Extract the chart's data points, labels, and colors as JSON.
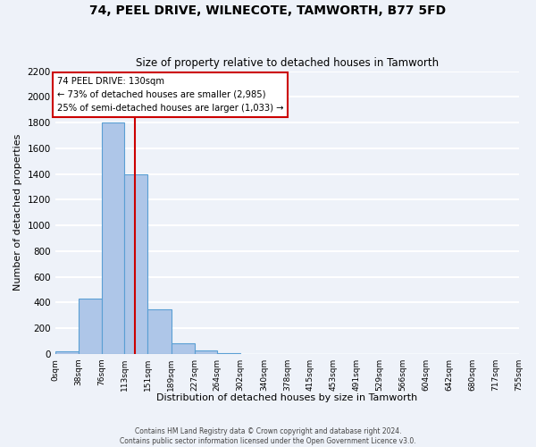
{
  "title": "74, PEEL DRIVE, WILNECOTE, TAMWORTH, B77 5FD",
  "subtitle": "Size of property relative to detached houses in Tamworth",
  "xlabel": "Distribution of detached houses by size in Tamworth",
  "ylabel": "Number of detached properties",
  "bar_edges": [
    0,
    38,
    76,
    113,
    151,
    189,
    227,
    264,
    302,
    340,
    378,
    415,
    453,
    491,
    529,
    566,
    604,
    642,
    680,
    717,
    755
  ],
  "bar_heights": [
    20,
    430,
    1800,
    1400,
    350,
    80,
    25,
    5,
    0,
    0,
    0,
    0,
    0,
    0,
    0,
    0,
    0,
    0,
    0,
    0
  ],
  "bar_color": "#aec6e8",
  "bar_edge_color": "#5a9fd4",
  "property_line_x": 130,
  "property_line_color": "#cc0000",
  "ylim": [
    0,
    2200
  ],
  "annotation_title": "74 PEEL DRIVE: 130sqm",
  "annotation_line1": "← 73% of detached houses are smaller (2,985)",
  "annotation_line2": "25% of semi-detached houses are larger (1,033) →",
  "tick_labels": [
    "0sqm",
    "38sqm",
    "76sqm",
    "113sqm",
    "151sqm",
    "189sqm",
    "227sqm",
    "264sqm",
    "302sqm",
    "340sqm",
    "378sqm",
    "415sqm",
    "453sqm",
    "491sqm",
    "529sqm",
    "566sqm",
    "604sqm",
    "642sqm",
    "680sqm",
    "717sqm",
    "755sqm"
  ],
  "yticks": [
    0,
    200,
    400,
    600,
    800,
    1000,
    1200,
    1400,
    1600,
    1800,
    2000,
    2200
  ],
  "footer_line1": "Contains HM Land Registry data © Crown copyright and database right 2024.",
  "footer_line2": "Contains public sector information licensed under the Open Government Licence v3.0.",
  "background_color": "#eef2f9",
  "grid_color": "#ffffff"
}
